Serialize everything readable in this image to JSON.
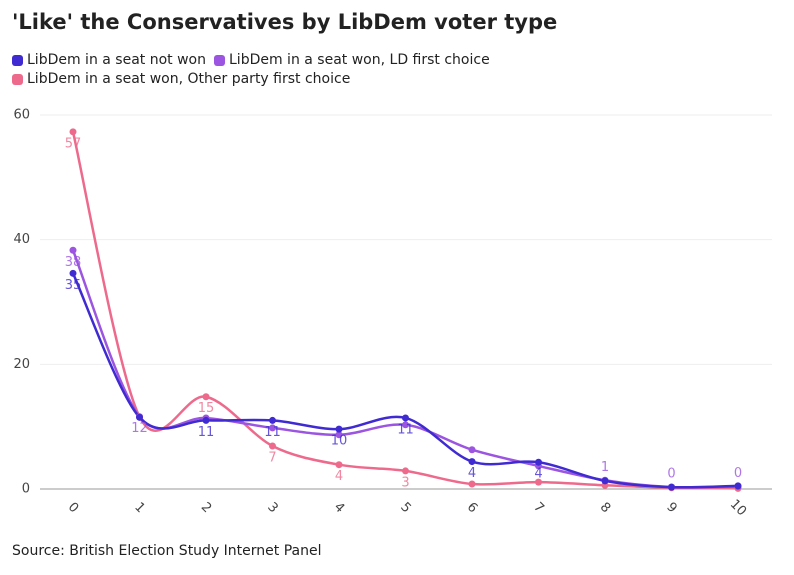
{
  "chart_data": {
    "type": "line",
    "title": "'Like' the Conservatives by LibDem voter type",
    "source": "Source: British Election Study Internet Panel",
    "categories": [
      "0",
      "1",
      "2",
      "3",
      "4",
      "5",
      "6",
      "7",
      "8",
      "9",
      "10"
    ],
    "series": [
      {
        "name": "LibDem in a seat not won",
        "color": "#3f2bd1",
        "values": [
          34.6,
          11.5,
          11,
          11,
          9.6,
          11.4,
          4.4,
          4.3,
          1.3,
          0.3,
          0.5
        ],
        "value_labels": [
          35,
          null,
          11,
          11,
          10,
          11,
          4,
          4,
          null,
          null,
          null
        ]
      },
      {
        "name": "LibDem in a seat won, LD first choice",
        "color": "#9b55e0",
        "values": [
          38.3,
          11.6,
          11.4,
          9.8,
          8.7,
          10.3,
          6.3,
          3.7,
          1.4,
          0.3,
          0.4
        ],
        "value_labels": [
          38,
          12,
          null,
          null,
          null,
          null,
          null,
          null,
          1,
          0,
          0
        ]
      },
      {
        "name": "LibDem in a seat won, Other party first choice",
        "color": "#ee6a8c",
        "values": [
          57.3,
          11.6,
          14.8,
          6.9,
          3.9,
          2.9,
          0.8,
          1.1,
          0.6,
          0.2,
          0.1
        ],
        "value_labels": [
          57,
          null,
          15,
          7,
          4,
          3,
          null,
          null,
          null,
          null,
          null
        ]
      }
    ],
    "ylim": [
      0,
      60
    ],
    "yticks": [
      0,
      20,
      40,
      60
    ],
    "grid": true
  }
}
